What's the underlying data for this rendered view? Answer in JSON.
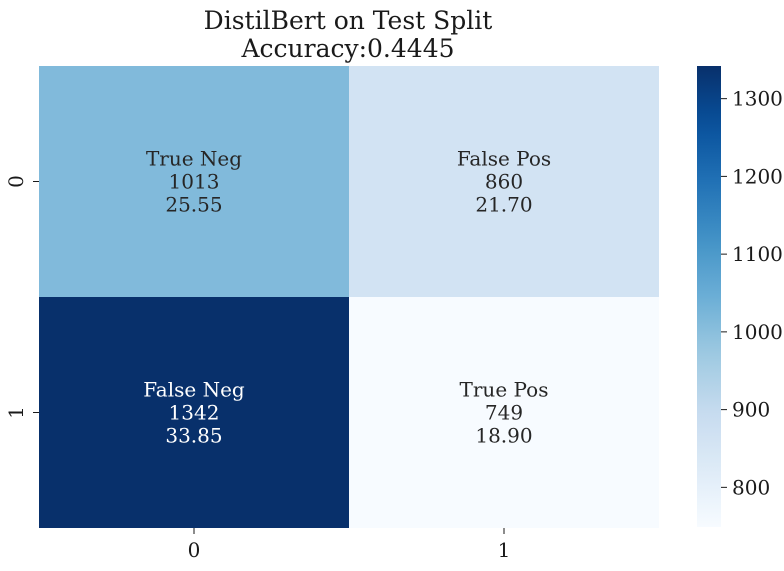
{
  "chart_data": {
    "type": "heatmap",
    "title": "DistilBert on Test Split",
    "subtitle": "Accuracy:0.4445",
    "x_tick_labels": [
      "0",
      "1"
    ],
    "y_tick_labels": [
      "0",
      "1"
    ],
    "cells": [
      [
        {
          "label": "True Neg",
          "count": 1013,
          "percent": "25.55"
        },
        {
          "label": "False Pos",
          "count": 860,
          "percent": "21.70"
        }
      ],
      [
        {
          "label": "False Neg",
          "count": 1342,
          "percent": "33.85"
        },
        {
          "label": "True Pos",
          "count": 749,
          "percent": "18.90"
        }
      ]
    ],
    "colorbar": {
      "colormap": "Blues",
      "vmin": 749,
      "vmax": 1342,
      "ticks": [
        800,
        900,
        1000,
        1100,
        1200,
        1300
      ]
    }
  }
}
